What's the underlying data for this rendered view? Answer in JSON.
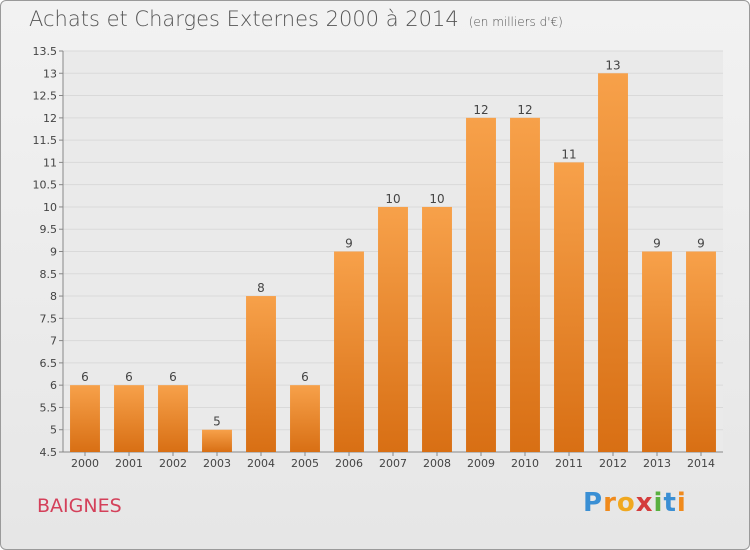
{
  "header": {
    "title": "Achats et Charges Externes 2000 à 2014",
    "unit_note": "(en milliers d'€)"
  },
  "location_label": "BAIGNES",
  "logo_text": "Proxiti",
  "colors": {
    "bar_top": "#f7a14a",
    "bar_bottom": "#d86f14",
    "grid": "#d9d9d9",
    "axis_text": "#444444",
    "town": "#d4405a"
  },
  "chart_data": {
    "type": "bar",
    "categories": [
      "2000",
      "2001",
      "2002",
      "2003",
      "2004",
      "2005",
      "2006",
      "2007",
      "2008",
      "2009",
      "2010",
      "2011",
      "2012",
      "2013",
      "2014"
    ],
    "values": [
      6,
      6,
      6,
      5,
      8,
      6,
      9,
      10,
      10,
      12,
      12,
      11,
      13,
      9,
      9
    ],
    "data_labels": [
      "6",
      "6",
      "6",
      "5",
      "8",
      "6",
      "9",
      "10",
      "10",
      "12",
      "12",
      "11",
      "13",
      "9",
      "9"
    ],
    "title": "Achats et Charges Externes 2000 à 2014",
    "subtitle": "(en milliers d'€)",
    "ylim": [
      4.5,
      13.5
    ],
    "yticks": [
      4.5,
      5,
      5.5,
      6,
      6.5,
      7,
      7.5,
      8,
      8.5,
      9,
      9.5,
      10,
      10.5,
      11,
      11.5,
      12,
      12.5,
      13,
      13.5
    ],
    "ytick_labels": [
      "4.5",
      "5",
      "5.5",
      "6",
      "6.5",
      "7",
      "7.5",
      "8",
      "8.5",
      "9",
      "9.5",
      "10",
      "10.5",
      "11",
      "11.5",
      "12",
      "12.5",
      "13",
      "13.5"
    ],
    "grid": true
  }
}
